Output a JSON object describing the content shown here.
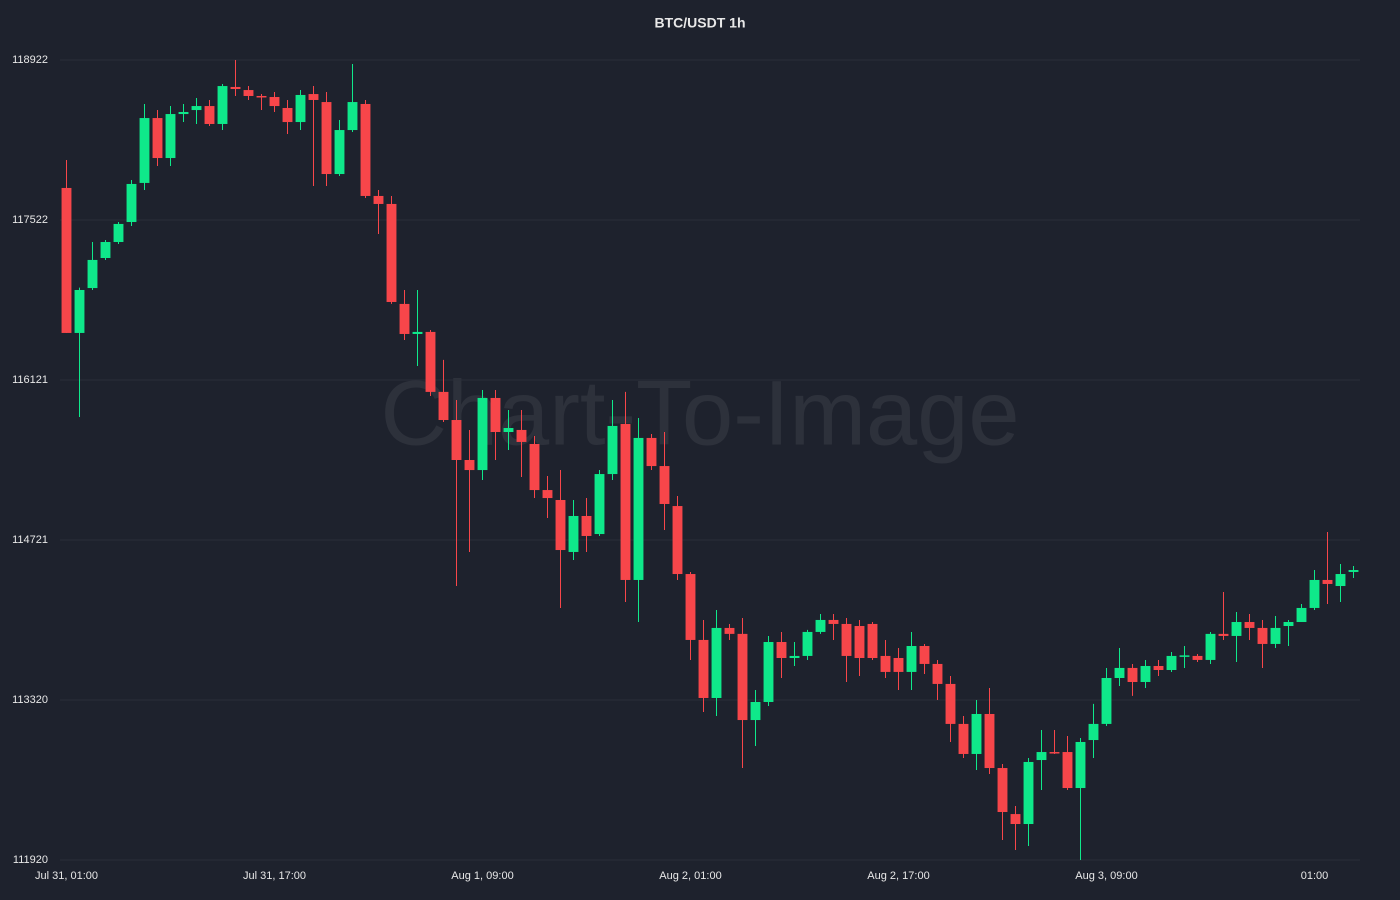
{
  "chart_data": {
    "type": "candlestick",
    "title": "BTC/USDT 1h",
    "watermark": "Chart-To-Image",
    "categories": [
      "Jul 31, 01:00",
      null,
      null,
      null,
      null,
      null,
      null,
      null,
      null,
      null,
      null,
      null,
      null,
      null,
      null,
      null,
      "Jul 31, 17:00",
      null,
      null,
      null,
      null,
      null,
      null,
      null,
      null,
      null,
      null,
      null,
      null,
      null,
      null,
      null,
      "Aug 1, 09:00",
      null,
      null,
      null,
      null,
      null,
      null,
      null,
      null,
      null,
      null,
      null,
      null,
      null,
      null,
      null,
      "Aug 2, 01:00",
      null,
      null,
      null,
      null,
      null,
      null,
      null,
      null,
      null,
      null,
      null,
      null,
      null,
      null,
      null,
      "Aug 2, 17:00",
      null,
      null,
      null,
      null,
      null,
      null,
      null,
      null,
      null,
      null,
      null,
      null,
      null,
      null,
      null,
      "Aug 3, 09:00",
      null,
      null,
      null,
      null,
      null,
      null,
      null,
      null,
      null,
      null,
      null,
      null,
      null,
      null,
      null,
      "01:00",
      null,
      null,
      null
    ],
    "open": [
      117802,
      116533,
      116926,
      117189,
      117329,
      117504,
      117846,
      118414,
      118064,
      118449,
      118484,
      118519,
      118362,
      118686,
      118659,
      118607,
      118598,
      118502,
      118379,
      118624,
      118554,
      117924,
      118309,
      118537,
      117732,
      117662,
      116787,
      116524,
      116542,
      116017,
      115771,
      115421,
      115333,
      115964,
      115666,
      115684,
      115561,
      115158,
      115071,
      114616,
      114931,
      114773,
      115298,
      115736,
      114371,
      115614,
      115368,
      115018,
      114423,
      113846,
      113338,
      113951,
      113899,
      113145,
      113303,
      113828,
      113688,
      113706,
      113916,
      114021,
      113986,
      113968,
      113986,
      113706,
      113688,
      113566,
      113793,
      113636,
      113461,
      113111,
      112848,
      113198,
      112725,
      112322,
      112235,
      112795,
      112865,
      112865,
      112550,
      112970,
      113111,
      113513,
      113601,
      113478,
      113618,
      113583,
      113706,
      113706,
      113671,
      113899,
      113881,
      114003,
      113951,
      113811,
      113968,
      114003,
      114126,
      114371,
      114318,
      114441
    ],
    "high": [
      118047,
      116930,
      117329,
      117347,
      117504,
      117872,
      118537,
      118484,
      118519,
      118537,
      118589,
      118572,
      118712,
      118922,
      118694,
      118624,
      118642,
      118572,
      118659,
      118694,
      118642,
      118397,
      118887,
      118572,
      117784,
      117732,
      116909,
      116909,
      116559,
      116297,
      115946,
      115684,
      116034,
      116034,
      115859,
      115859,
      115631,
      115281,
      115333,
      115071,
      115088,
      115333,
      115946,
      116017,
      115789,
      115649,
      115666,
      115106,
      114441,
      114021,
      114108,
      113986,
      114038,
      113408,
      113881,
      113916,
      113828,
      113934,
      114073,
      114073,
      114038,
      114021,
      114003,
      113846,
      113776,
      113916,
      113811,
      113671,
      113531,
      113180,
      113320,
      113425,
      112760,
      112393,
      112813,
      113058,
      113058,
      113005,
      112988,
      113286,
      113601,
      113776,
      113636,
      113671,
      113671,
      113741,
      113793,
      113723,
      113916,
      114266,
      114091,
      114073,
      114021,
      114056,
      114021,
      114161,
      114458,
      114791,
      114511,
      114493
    ],
    "low": [
      116533,
      115797,
      116909,
      117172,
      117312,
      117469,
      117784,
      117994,
      117994,
      118379,
      118362,
      118344,
      118309,
      118607,
      118572,
      118484,
      118467,
      118274,
      118309,
      117819,
      117819,
      117907,
      118292,
      117714,
      117399,
      116787,
      116471,
      116244,
      115981,
      115754,
      114318,
      114616,
      115246,
      115421,
      115509,
      115272,
      115088,
      114913,
      114126,
      114546,
      114616,
      114756,
      115246,
      114178,
      114003,
      115333,
      114808,
      114371,
      113671,
      113215,
      113180,
      113846,
      112725,
      112918,
      113268,
      113513,
      113618,
      113671,
      113899,
      113846,
      113478,
      113531,
      113671,
      113513,
      113408,
      113408,
      113548,
      113320,
      112953,
      112813,
      112708,
      112673,
      112095,
      112007,
      112042,
      112533,
      112848,
      112533,
      111920,
      112813,
      113093,
      113443,
      113356,
      113425,
      113531,
      113566,
      113601,
      113653,
      113636,
      113846,
      113653,
      113846,
      113601,
      113776,
      113793,
      114003,
      114108,
      114161,
      114178,
      114388
    ],
    "close": [
      116533,
      116909,
      117172,
      117329,
      117487,
      117837,
      118414,
      118064,
      118449,
      118467,
      118519,
      118362,
      118694,
      118668,
      118607,
      118598,
      118519,
      118379,
      118616,
      118572,
      117924,
      118309,
      118554,
      117732,
      117662,
      116804,
      116524,
      116542,
      116017,
      115771,
      115421,
      115333,
      115964,
      115666,
      115701,
      115579,
      115158,
      115088,
      114633,
      114931,
      114756,
      115298,
      115719,
      114371,
      115614,
      115368,
      115036,
      114423,
      113846,
      113338,
      113951,
      113899,
      113145,
      113303,
      113828,
      113688,
      113706,
      113916,
      114021,
      113986,
      113706,
      113688,
      113688,
      113566,
      113566,
      113793,
      113636,
      113461,
      113111,
      112848,
      113198,
      112725,
      112340,
      112235,
      112778,
      112865,
      112860,
      112550,
      112953,
      113111,
      113513,
      113601,
      113478,
      113618,
      113583,
      113706,
      113711,
      113671,
      113899,
      113881,
      114003,
      113951,
      113811,
      113951,
      114003,
      114126,
      114371,
      114336,
      114423,
      114458
    ],
    "up_color": "#0fe88a",
    "down_color": "#f7464a",
    "ylim": [
      111920,
      118922
    ],
    "yticks": [
      111920,
      113320,
      114721,
      116121,
      117522,
      118922
    ],
    "grid": true
  }
}
